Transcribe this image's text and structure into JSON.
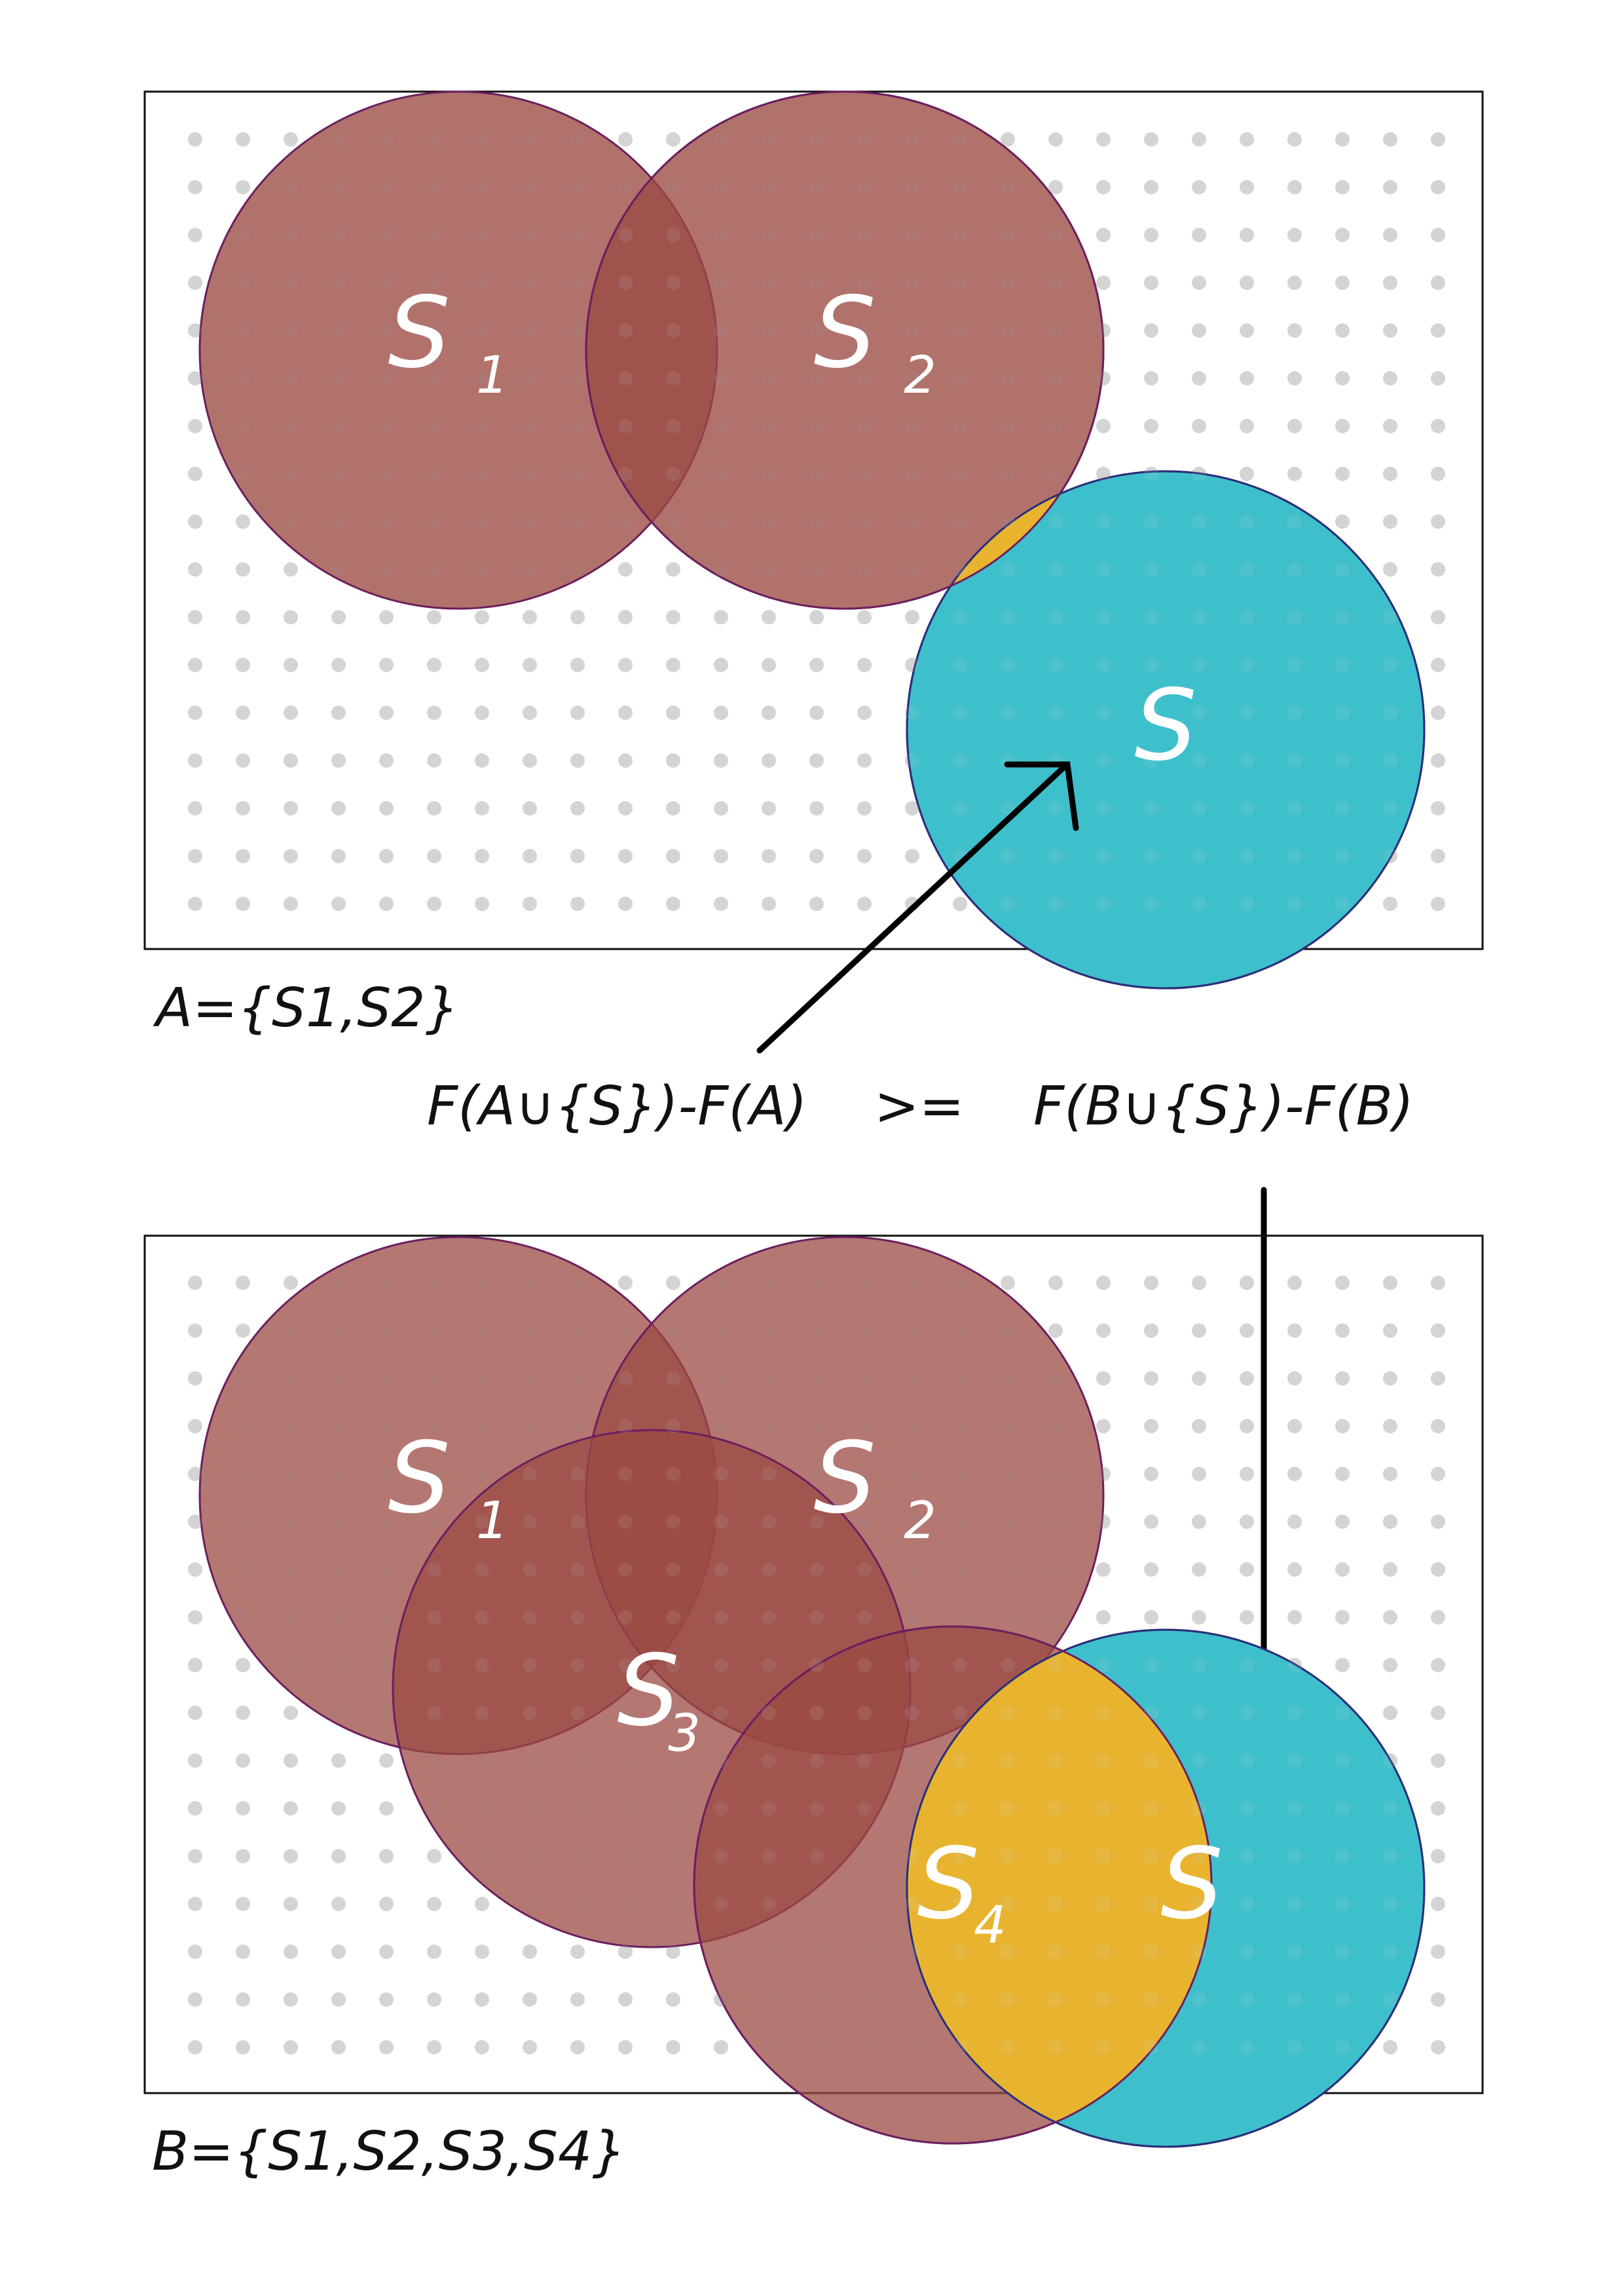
{
  "colors": {
    "background": "#ffffff",
    "frame": "#111111",
    "dot": "#d4d4d4",
    "subset_fill": "#9b4a43",
    "subset_stroke": "#6b1f5e",
    "set_s_fill": "#3ec0cc",
    "set_s_stroke": "#2a2f7a",
    "overlap_fill": "#e8b430",
    "arrow": "#000000",
    "label": "#ffffff",
    "text": "#111111"
  },
  "top_panel": {
    "caption": "A={S1,S2}",
    "circles": [
      {
        "id": "S1",
        "label": "S",
        "subscript": "1"
      },
      {
        "id": "S2",
        "label": "S",
        "subscript": "2"
      },
      {
        "id": "S",
        "label": "S",
        "subscript": ""
      }
    ]
  },
  "bottom_panel": {
    "caption": "B={S1,S2,S3,S4}",
    "circles": [
      {
        "id": "S1",
        "label": "S",
        "subscript": "1"
      },
      {
        "id": "S2",
        "label": "S",
        "subscript": "2"
      },
      {
        "id": "S3",
        "label": "S",
        "subscript": "3"
      },
      {
        "id": "S4",
        "label": "S",
        "subscript": "4"
      },
      {
        "id": "S",
        "label": "S",
        "subscript": ""
      }
    ]
  },
  "formula": {
    "left": "F(A∪{S})-F(A)",
    "operator": ">=",
    "right": "F(B∪{S})-F(B)"
  }
}
